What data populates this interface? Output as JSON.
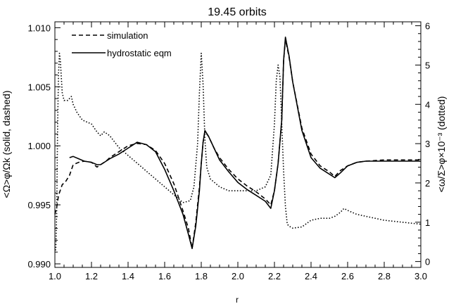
{
  "chart_data": {
    "type": "line",
    "title": "19.45 orbits",
    "xlabel": "r",
    "ylabel_left": "<Ω>φ/Ωk (solid, dashed)",
    "ylabel_right": "<ω/Σ>φ×10⁻³ (dotted)",
    "xlim": [
      1.0,
      3.0
    ],
    "ylim_left": [
      0.9897,
      1.0105
    ],
    "ylim_right": [
      -0.15,
      6.1
    ],
    "xticks": [
      "1.0",
      "1.2",
      "1.4",
      "1.6",
      "1.8",
      "2.0",
      "2.2",
      "2.4",
      "2.6",
      "2.8",
      "3.0"
    ],
    "yticks_left": [
      "0.990",
      "0.995",
      "1.000",
      "1.005",
      "1.010"
    ],
    "yticks_right": [
      "0",
      "1",
      "2",
      "3",
      "4",
      "5",
      "6"
    ],
    "grid": false,
    "legend_position": "top-left",
    "series": [
      {
        "name": "simulation",
        "axis": "left",
        "style": "dashed",
        "x": [
          1.0,
          1.01,
          1.02,
          1.04,
          1.06,
          1.08,
          1.1,
          1.13,
          1.16,
          1.2,
          1.23,
          1.25,
          1.28,
          1.3,
          1.35,
          1.4,
          1.45,
          1.5,
          1.55,
          1.6,
          1.65,
          1.7,
          1.73,
          1.75,
          1.77,
          1.79,
          1.8,
          1.81,
          1.82,
          1.84,
          1.87,
          1.9,
          1.95,
          2.0,
          2.05,
          2.1,
          2.15,
          2.18,
          2.2,
          2.22,
          2.24,
          2.25,
          2.26,
          2.28,
          2.3,
          2.35,
          2.4,
          2.45,
          2.5,
          2.53,
          2.56,
          2.6,
          2.65,
          2.7,
          2.8,
          2.9,
          3.0
        ],
        "y": [
          0.9942,
          0.9948,
          0.9958,
          0.9967,
          0.997,
          0.9975,
          0.9984,
          0.9986,
          0.9987,
          0.9986,
          0.9982,
          0.9984,
          0.9987,
          0.999,
          0.9995,
          1.0,
          1.0002,
          1.0001,
          0.9996,
          0.9985,
          0.9968,
          0.9945,
          0.993,
          0.9913,
          0.9935,
          0.9965,
          0.9985,
          1.0003,
          1.0012,
          1.0008,
          0.9998,
          0.999,
          0.998,
          0.9972,
          0.9966,
          0.9961,
          0.9955,
          0.995,
          0.9962,
          0.9985,
          1.0022,
          1.0072,
          1.009,
          1.0075,
          1.0054,
          1.0015,
          0.9993,
          0.9983,
          0.9978,
          0.9974,
          0.9979,
          0.9983,
          0.9986,
          0.9987,
          0.9988,
          0.9988,
          0.9988
        ]
      },
      {
        "name": "hydrostatic eqm",
        "axis": "left",
        "style": "solid",
        "x": [
          1.08,
          1.1,
          1.13,
          1.16,
          1.2,
          1.23,
          1.25,
          1.28,
          1.3,
          1.35,
          1.4,
          1.45,
          1.5,
          1.55,
          1.6,
          1.65,
          1.7,
          1.73,
          1.75,
          1.77,
          1.79,
          1.8,
          1.81,
          1.82,
          1.84,
          1.87,
          1.9,
          1.95,
          2.0,
          2.05,
          2.1,
          2.15,
          2.18,
          2.2,
          2.22,
          2.24,
          2.25,
          2.26,
          2.28,
          2.3,
          2.35,
          2.4,
          2.45,
          2.5,
          2.53,
          2.56,
          2.6,
          2.65,
          2.7,
          2.8,
          2.9,
          3.0
        ],
        "y": [
          0.999,
          0.9991,
          0.9989,
          0.9987,
          0.9986,
          0.9984,
          0.9984,
          0.9987,
          0.9989,
          0.9993,
          0.9998,
          1.0003,
          1.0001,
          0.9995,
          0.998,
          0.9962,
          0.9942,
          0.9925,
          0.9913,
          0.9932,
          0.9962,
          0.9985,
          1.0003,
          1.0013,
          1.0008,
          0.9998,
          0.9988,
          0.9978,
          0.9969,
          0.9963,
          0.9958,
          0.9953,
          0.9947,
          0.9962,
          0.9985,
          1.0022,
          1.0072,
          1.0092,
          1.0076,
          1.0054,
          1.0013,
          0.999,
          0.9981,
          0.9976,
          0.9973,
          0.9977,
          0.9983,
          0.9986,
          0.9987,
          0.9987,
          0.9987,
          0.9987
        ]
      },
      {
        "name": "",
        "axis": "right",
        "style": "dotted",
        "x": [
          1.0,
          1.005,
          1.01,
          1.015,
          1.02,
          1.025,
          1.03,
          1.04,
          1.05,
          1.07,
          1.09,
          1.1,
          1.12,
          1.15,
          1.2,
          1.23,
          1.25,
          1.27,
          1.3,
          1.35,
          1.4,
          1.45,
          1.5,
          1.55,
          1.6,
          1.65,
          1.7,
          1.74,
          1.76,
          1.78,
          1.79,
          1.8,
          1.81,
          1.82,
          1.83,
          1.85,
          1.9,
          1.95,
          2.0,
          2.05,
          2.1,
          2.15,
          2.18,
          2.2,
          2.21,
          2.22,
          2.23,
          2.24,
          2.25,
          2.26,
          2.27,
          2.28,
          2.3,
          2.35,
          2.4,
          2.45,
          2.5,
          2.53,
          2.56,
          2.58,
          2.6,
          2.65,
          2.7,
          2.8,
          2.9,
          3.0
        ],
        "y": [
          0.3,
          0.3,
          1.3,
          3.5,
          4.8,
          5.3,
          5.1,
          4.3,
          4.1,
          4.1,
          4.2,
          4.0,
          3.8,
          3.6,
          3.5,
          3.3,
          3.2,
          3.3,
          3.2,
          2.9,
          2.7,
          2.5,
          2.3,
          2.1,
          1.9,
          1.7,
          1.5,
          1.55,
          1.9,
          3.0,
          4.3,
          5.3,
          4.5,
          3.1,
          2.4,
          2.1,
          1.9,
          1.8,
          1.8,
          1.8,
          1.8,
          1.9,
          2.2,
          3.5,
          4.6,
          5.0,
          4.7,
          3.5,
          2.3,
          1.4,
          0.95,
          0.9,
          0.85,
          0.88,
          1.05,
          1.1,
          1.1,
          1.15,
          1.25,
          1.35,
          1.3,
          1.2,
          1.15,
          1.05,
          1.0,
          0.95
        ]
      }
    ]
  }
}
